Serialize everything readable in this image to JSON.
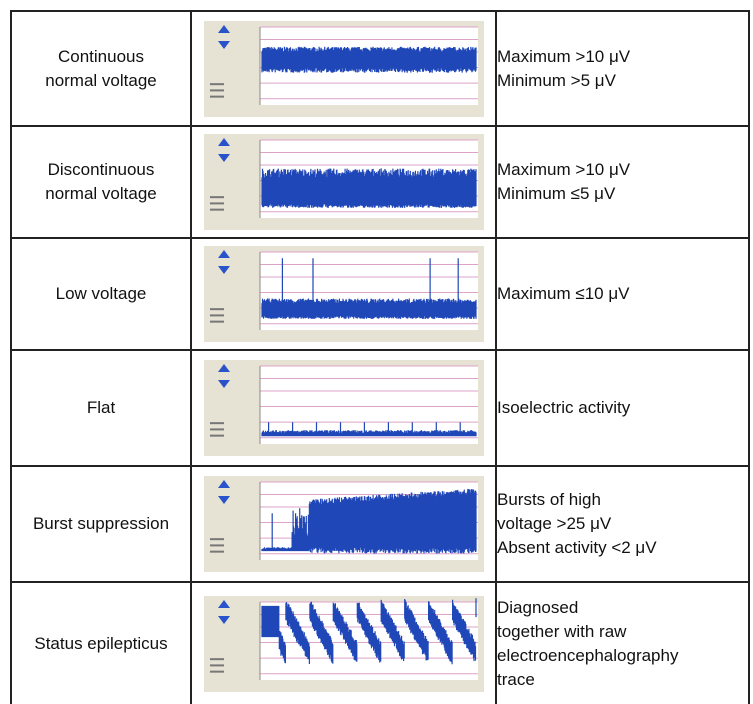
{
  "colors": {
    "signal": "#1f47b8",
    "panel_bg": "#e6e2d4",
    "plot_bg": "#ffffff",
    "gridline": "#dca3c9",
    "arrow": "#2a52c9",
    "border": "#222222"
  },
  "icons": [
    "arrow-up-icon",
    "arrow-down-icon"
  ],
  "rows": [
    {
      "pattern_lines": [
        "Continuous",
        "normal voltage"
      ],
      "criteria_lines": [
        "Maximum >10 μV",
        "Minimum >5 μV"
      ],
      "trace": "continuous"
    },
    {
      "pattern_lines": [
        "Discontinuous",
        "normal voltage"
      ],
      "criteria_lines": [
        "Maximum >10 μV",
        "Minimum ≤5 μV"
      ],
      "trace": "discontinuous"
    },
    {
      "pattern_lines": [
        "Low voltage"
      ],
      "criteria_lines": [
        "Maximum ≤10 μV"
      ],
      "trace": "low"
    },
    {
      "pattern_lines": [
        "Flat"
      ],
      "criteria_lines": [
        "Isoelectric activity"
      ],
      "trace": "flat"
    },
    {
      "pattern_lines": [
        "Burst suppression"
      ],
      "criteria_lines": [
        "Bursts of high",
        "voltage >25 μV",
        "Absent activity <2 μV"
      ],
      "trace": "burst"
    },
    {
      "pattern_lines": [
        "Status epilepticus"
      ],
      "criteria_lines": [
        "Diagnosed",
        "together with raw",
        "electroencephalography",
        "trace"
      ],
      "trace": "status"
    }
  ]
}
